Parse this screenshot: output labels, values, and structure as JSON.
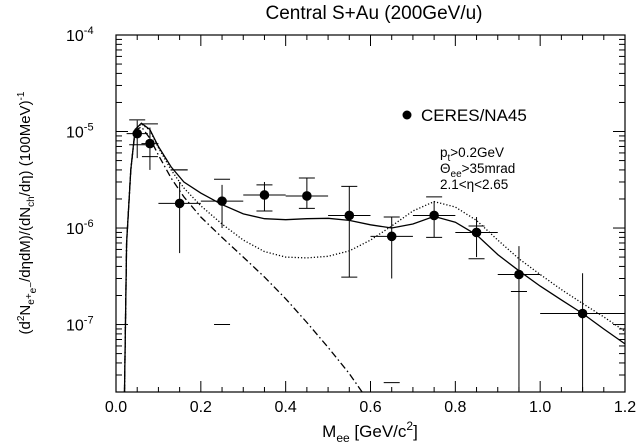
{
  "chart_data": {
    "type": "scatter",
    "title": "Central S+Au (200GeV/u)",
    "xlabel": {
      "main": "M",
      "sub": "ee",
      "rest": " [GeV/c",
      "sup": "2",
      "end": "]"
    },
    "ylabel": "(d²N_ee/dηdM)/(dN_ch/dη) (100MeV)⁻¹",
    "xlim": [
      0.0,
      1.2
    ],
    "ylim": [
      2e-08,
      0.0001
    ],
    "y_scale": "log",
    "x_ticks": [
      "0.0",
      "0.2",
      "0.4",
      "0.6",
      "0.8",
      "1.0",
      "1.2"
    ],
    "y_ticks": [
      {
        "base": "10",
        "exp": "-4",
        "value": 0.0001
      },
      {
        "base": "10",
        "exp": "-5",
        "value": 1e-05
      },
      {
        "base": "10",
        "exp": "-6",
        "value": 1e-06
      },
      {
        "base": "10",
        "exp": "-7",
        "value": 1e-07
      }
    ],
    "legend": {
      "label": "CERES/NA45",
      "placement": "top-right"
    },
    "annotations": [
      "p_t>0.2GeV",
      "Θ_ee>35mrad",
      "2.1<η<2.65"
    ],
    "series": [
      {
        "name": "CERES/NA45",
        "marker": "filled-circle",
        "points": [
          {
            "x": 0.05,
            "y": 9.5e-06,
            "xerr": 0.025,
            "ylo": 5.3e-06,
            "yhi": 1.3e-05,
            "syslo": 7.3e-06,
            "syshi": 1.32e-05
          },
          {
            "x": 0.08,
            "y": 7.5e-06,
            "xerr": 0.02,
            "ylo": 4e-06,
            "yhi": 1.1e-05,
            "syslo": 5.5e-06,
            "syshi": 1.2e-05
          },
          {
            "x": 0.15,
            "y": 1.8e-06,
            "xerr": 0.05,
            "ylo": 5.5e-07,
            "yhi": 3e-06,
            "syslo": 4e-06,
            "syshi": 4e-06
          },
          {
            "x": 0.25,
            "y": 1.9e-06,
            "xerr": 0.05,
            "ylo": 1e-06,
            "yhi": 2.8e-06,
            "syslo": 1e-07,
            "syshi": 3.2e-06
          },
          {
            "x": 0.35,
            "y": 2.2e-06,
            "xerr": 0.05,
            "ylo": 1.5e-06,
            "yhi": 3e-06,
            "syslo": 1.5e-06,
            "syshi": 2.8e-06
          },
          {
            "x": 0.45,
            "y": 2.15e-06,
            "xerr": 0.05,
            "ylo": 1.6e-06,
            "yhi": 3.3e-06,
            "syslo": 1.6e-06,
            "syshi": 3.3e-06
          },
          {
            "x": 0.55,
            "y": 1.35e-06,
            "xerr": 0.05,
            "ylo": 3.1e-07,
            "yhi": 2.7e-06,
            "syslo": 3.1e-07,
            "syshi": 2.7e-06
          },
          {
            "x": 0.65,
            "y": 8.2e-07,
            "xerr": 0.05,
            "ylo": 3e-07,
            "yhi": 1.3e-06,
            "syslo": 2.5e-08,
            "syshi": 1.3e-06
          },
          {
            "x": 0.75,
            "y": 1.35e-06,
            "xerr": 0.05,
            "ylo": 8e-07,
            "yhi": 1.9e-06,
            "syslo": 8e-07,
            "syshi": 2.1e-06
          },
          {
            "x": 0.85,
            "y": 9e-07,
            "xerr": 0.05,
            "ylo": 5e-07,
            "yhi": 1.3e-06,
            "syslo": 4.8e-07,
            "syshi": 1.05e-06
          },
          {
            "x": 0.95,
            "y": 3.3e-07,
            "xerr": 0.05,
            "ylo": 2e-08,
            "yhi": 6.5e-07,
            "syslo": 2.2e-07,
            "syshi": 2.2e-07
          },
          {
            "x": 1.1,
            "y": 1.3e-07,
            "xerr": 0.1,
            "ylo": 2e-08,
            "yhi": 3.4e-07,
            "syslo": 1.3e-07,
            "syshi": 1.3e-07
          }
        ]
      },
      {
        "style": "solid",
        "points": [
          [
            0.02,
            2e-08
          ],
          [
            0.025,
            7e-07
          ],
          [
            0.035,
            4e-06
          ],
          [
            0.045,
            1.05e-05
          ],
          [
            0.06,
            1.22e-05
          ],
          [
            0.08,
            1.05e-05
          ],
          [
            0.1,
            7e-06
          ],
          [
            0.13,
            4.3e-06
          ],
          [
            0.16,
            3e-06
          ],
          [
            0.2,
            2.3e-06
          ],
          [
            0.25,
            1.75e-06
          ],
          [
            0.3,
            1.4e-06
          ],
          [
            0.35,
            1.25e-06
          ],
          [
            0.4,
            1.22e-06
          ],
          [
            0.45,
            1.25e-06
          ],
          [
            0.5,
            1.26e-06
          ],
          [
            0.55,
            1.2e-06
          ],
          [
            0.6,
            1.08e-06
          ],
          [
            0.65,
            1e-06
          ],
          [
            0.7,
            1.1e-06
          ],
          [
            0.75,
            1.32e-06
          ],
          [
            0.8,
            1.15e-06
          ],
          [
            0.85,
            8.5e-07
          ],
          [
            0.9,
            5.3e-07
          ],
          [
            0.95,
            3.6e-07
          ],
          [
            1.0,
            2.5e-07
          ],
          [
            1.05,
            1.8e-07
          ],
          [
            1.1,
            1.3e-07
          ],
          [
            1.15,
            9e-08
          ],
          [
            1.2,
            6.3e-08
          ]
        ]
      },
      {
        "style": "dotted",
        "points": [
          [
            0.02,
            2e-08
          ],
          [
            0.025,
            7e-07
          ],
          [
            0.035,
            4e-06
          ],
          [
            0.045,
            1.05e-05
          ],
          [
            0.06,
            1.2e-05
          ],
          [
            0.08,
            1.03e-05
          ],
          [
            0.1,
            6.8e-06
          ],
          [
            0.13,
            4e-06
          ],
          [
            0.16,
            2.6e-06
          ],
          [
            0.2,
            1.7e-06
          ],
          [
            0.25,
            1.1e-06
          ],
          [
            0.3,
            7.5e-07
          ],
          [
            0.35,
            5.7e-07
          ],
          [
            0.4,
            5e-07
          ],
          [
            0.45,
            4.9e-07
          ],
          [
            0.5,
            5.1e-07
          ],
          [
            0.55,
            5.8e-07
          ],
          [
            0.6,
            7.5e-07
          ],
          [
            0.65,
            1.05e-06
          ],
          [
            0.7,
            1.5e-06
          ],
          [
            0.75,
            1.88e-06
          ],
          [
            0.8,
            1.65e-06
          ],
          [
            0.85,
            1.2e-06
          ],
          [
            0.9,
            7.5e-07
          ],
          [
            0.95,
            4.8e-07
          ],
          [
            1.0,
            3.3e-07
          ],
          [
            1.05,
            2.3e-07
          ],
          [
            1.1,
            1.65e-07
          ],
          [
            1.15,
            1.2e-07
          ],
          [
            1.2,
            8.5e-08
          ]
        ]
      },
      {
        "style": "dash-dot",
        "points": [
          [
            0.02,
            2e-08
          ],
          [
            0.025,
            7e-07
          ],
          [
            0.035,
            4e-06
          ],
          [
            0.045,
            1.02e-05
          ],
          [
            0.06,
            1.12e-05
          ],
          [
            0.08,
            8.5e-06
          ],
          [
            0.1,
            5.7e-06
          ],
          [
            0.13,
            3.3e-06
          ],
          [
            0.16,
            2.1e-06
          ],
          [
            0.2,
            1.3e-06
          ],
          [
            0.25,
            8e-07
          ],
          [
            0.3,
            5e-07
          ],
          [
            0.35,
            3.1e-07
          ],
          [
            0.4,
            1.85e-07
          ],
          [
            0.45,
            1.05e-07
          ],
          [
            0.5,
            5.8e-08
          ],
          [
            0.55,
            3.1e-08
          ],
          [
            0.6,
            1.5e-08
          ]
        ]
      }
    ]
  }
}
